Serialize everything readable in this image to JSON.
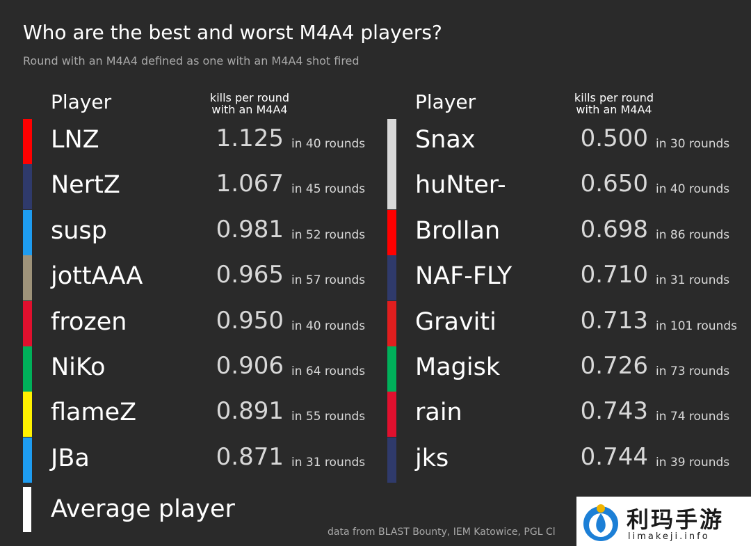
{
  "title": "Who are the best and worst M4A4 players?",
  "subtitle": "Round with an M4A4 defined as one with an M4A4 shot fired",
  "source": "data from BLAST Bounty, IEM Katowice, PGL Cl",
  "watermark": {
    "chinese": "利玛手游",
    "latin": "limakeji.info"
  },
  "chart_data": {
    "type": "table",
    "columns": {
      "player": "Player",
      "metric_line1": "kills per round",
      "metric_line2": "with an M4A4"
    },
    "best": [
      {
        "player": "LNZ",
        "kpr": "1.125",
        "rounds": "in 40 rounds",
        "color": "#ff0000"
      },
      {
        "player": "NertZ",
        "kpr": "1.067",
        "rounds": "in 45 rounds",
        "color": "#2f3a6b"
      },
      {
        "player": "susp",
        "kpr": "0.981",
        "rounds": "in 52 rounds",
        "color": "#1e9cf0"
      },
      {
        "player": "jottAAA",
        "kpr": "0.965",
        "rounds": "in 57 rounds",
        "color": "#9e937a"
      },
      {
        "player": "frozen",
        "kpr": "0.950",
        "rounds": "in 40 rounds",
        "color": "#e0102e"
      },
      {
        "player": "NiKo",
        "kpr": "0.906",
        "rounds": "in 64 rounds",
        "color": "#00b05a"
      },
      {
        "player": "flameZ",
        "kpr": "0.891",
        "rounds": "in 55 rounds",
        "color": "#fff200"
      },
      {
        "player": "JBa",
        "kpr": "0.871",
        "rounds": "in 31 rounds",
        "color": "#1e9cf0"
      }
    ],
    "worst": [
      {
        "player": "Snax",
        "kpr": "0.500",
        "rounds": "in 30 rounds",
        "color": "#d9d9d9"
      },
      {
        "player": "huNter-",
        "kpr": "0.650",
        "rounds": "in 40 rounds",
        "color": "#d9d9d9"
      },
      {
        "player": "Brollan",
        "kpr": "0.698",
        "rounds": "in 86 rounds",
        "color": "#ff0000"
      },
      {
        "player": "NAF-FLY",
        "kpr": "0.710",
        "rounds": "in 31 rounds",
        "color": "#2f3a6b"
      },
      {
        "player": "Graviti",
        "kpr": "0.713",
        "rounds": "in 101 rounds",
        "color": "#e01e1e"
      },
      {
        "player": "Magisk",
        "kpr": "0.726",
        "rounds": "in 73 rounds",
        "color": "#00b05a"
      },
      {
        "player": "rain",
        "kpr": "0.743",
        "rounds": "in 74 rounds",
        "color": "#e0102e"
      },
      {
        "player": "jks",
        "kpr": "0.744",
        "rounds": "in 39 rounds",
        "color": "#2f3a6b"
      }
    ],
    "average": {
      "player": "Average player",
      "color": "#ffffff"
    }
  }
}
